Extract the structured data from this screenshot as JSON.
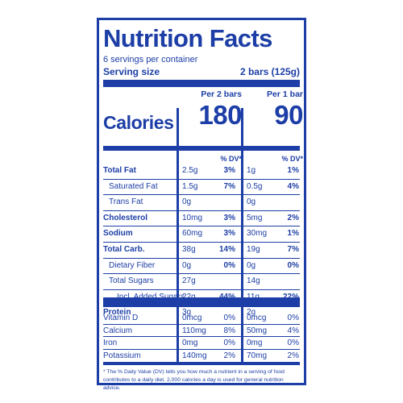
{
  "title": "Nutrition Facts",
  "servings_per_container": "6 servings per container",
  "serving_size_label": "Serving size",
  "serving_size_value": "2 bars (125g)",
  "calories_label": "Calories",
  "col1_header": "Per 2 bars",
  "col2_header": "Per 1 bar",
  "col1_calories": "180",
  "col2_calories": "90",
  "dv_header": "% DV*",
  "nutrients": [
    {
      "name": "Total Fat",
      "bold": true,
      "indent": 0,
      "a1": "2.5g",
      "d1": "3%",
      "a2": "1g",
      "d2": "1%"
    },
    {
      "name": "Saturated Fat",
      "bold": false,
      "indent": 1,
      "a1": "1.5g",
      "d1": "7%",
      "a2": "0.5g",
      "d2": "4%"
    },
    {
      "name": "Trans Fat",
      "bold": false,
      "indent": 1,
      "a1": "0g",
      "d1": "",
      "a2": "0g",
      "d2": ""
    },
    {
      "name": "Cholesterol",
      "bold": true,
      "indent": 0,
      "a1": "10mg",
      "d1": "3%",
      "a2": "5mg",
      "d2": "2%"
    },
    {
      "name": "Sodium",
      "bold": true,
      "indent": 0,
      "a1": "60mg",
      "d1": "3%",
      "a2": "30mg",
      "d2": "1%"
    },
    {
      "name": "Total Carb.",
      "bold": true,
      "indent": 0,
      "a1": "38g",
      "d1": "14%",
      "a2": "19g",
      "d2": "7%"
    },
    {
      "name": "Dietary Fiber",
      "bold": false,
      "indent": 1,
      "a1": "0g",
      "d1": "0%",
      "a2": "0g",
      "d2": "0%"
    },
    {
      "name": "Total Sugars",
      "bold": false,
      "indent": 1,
      "a1": "27g",
      "d1": "",
      "a2": "14g",
      "d2": ""
    },
    {
      "name": "Incl. Added Sugars",
      "bold": false,
      "indent": 2,
      "a1": "22g",
      "d1": "44%",
      "a2": "11g",
      "d2": "22%"
    },
    {
      "name": "Protein",
      "bold": true,
      "indent": 0,
      "a1": "3g",
      "d1": "",
      "a2": "2g",
      "d2": ""
    }
  ],
  "vitamins": [
    {
      "name": "Vitamin D",
      "a1": "0mcg",
      "d1": "0%",
      "a2": "0mcg",
      "d2": "0%"
    },
    {
      "name": "Calcium",
      "a1": "110mg",
      "d1": "8%",
      "a2": "50mg",
      "d2": "4%"
    },
    {
      "name": "Iron",
      "a1": "0mg",
      "d1": "0%",
      "a2": "0mg",
      "d2": "0%"
    },
    {
      "name": "Potassium",
      "a1": "140mg",
      "d1": "2%",
      "a2": "70mg",
      "d2": "2%"
    }
  ],
  "footnote": "* The % Daily Value (DV) tells you how much a nutrient in a serving of food contributes to a daily diet. 2,000 calories a day is used for general nutrition advice.",
  "colors": {
    "ink": "#1c3ea6",
    "background": "#ffffff"
  }
}
